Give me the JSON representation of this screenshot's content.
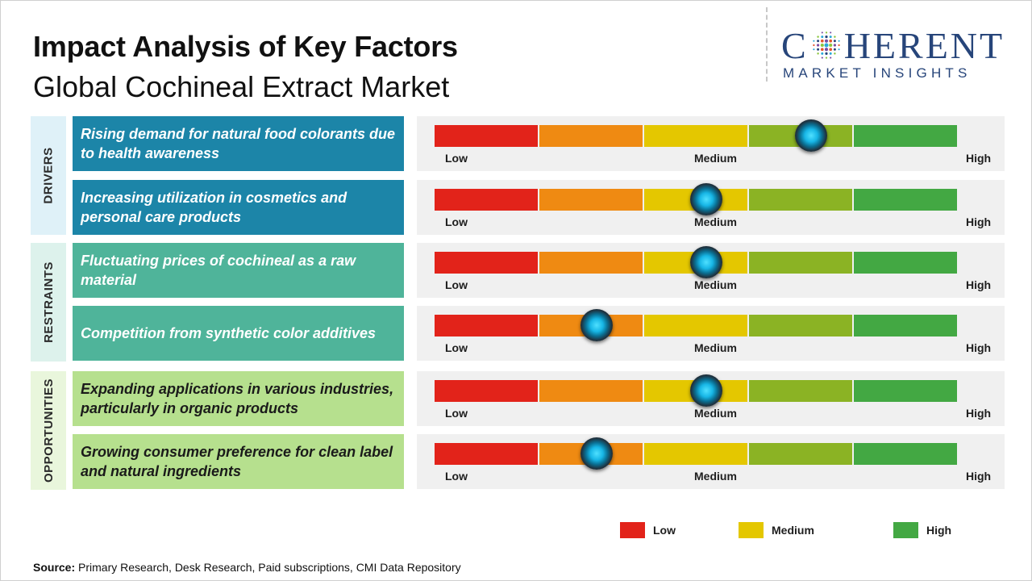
{
  "title": "Impact Analysis of Key Factors",
  "subtitle": "Global Cochineal Extract Market",
  "logo": {
    "brand": "COHERENT",
    "tagline": "MARKET INSIGHTS"
  },
  "colors": {
    "low_red": "#e2231a",
    "low_orange": "#ef8a12",
    "medium_yellow": "#e4c700",
    "high_olive": "#8bb324",
    "high_green": "#43a843",
    "drivers": "#1c85a8",
    "restraints": "#4fb49a",
    "opportunities": "#b6e08e"
  },
  "scale_labels": {
    "low": "Low",
    "medium": "Medium",
    "high": "High"
  },
  "legend": [
    {
      "label": "Low",
      "color": "#e2231a"
    },
    {
      "label": "Medium",
      "color": "#e4c700"
    },
    {
      "label": "High",
      "color": "#43a843"
    }
  ],
  "chart_data": {
    "type": "gauge",
    "scale": [
      "Low",
      "Medium",
      "High"
    ],
    "value_range": [
      0,
      1
    ],
    "groups": [
      {
        "category": "DRIVERS",
        "factors": [
          {
            "text": "Rising demand for natural food colorants due to health awareness",
            "impact": 0.72
          },
          {
            "text": "Increasing utilization in cosmetics and personal care products",
            "impact": 0.52
          }
        ]
      },
      {
        "category": "RESTRAINTS",
        "factors": [
          {
            "text": "Fluctuating prices of cochineal as a raw material",
            "impact": 0.52
          },
          {
            "text": "Competition from synthetic color additives",
            "impact": 0.31
          }
        ]
      },
      {
        "category": "OPPORTUNITIES",
        "factors": [
          {
            "text": "Expanding applications in various industries, particularly in organic products",
            "impact": 0.52
          },
          {
            "text": "Growing consumer preference for clean label and natural ingredients",
            "impact": 0.31
          }
        ]
      }
    ]
  },
  "source": {
    "label": "Source:",
    "text": "Primary Research, Desk Research, Paid subscriptions, CMI Data Repository"
  }
}
